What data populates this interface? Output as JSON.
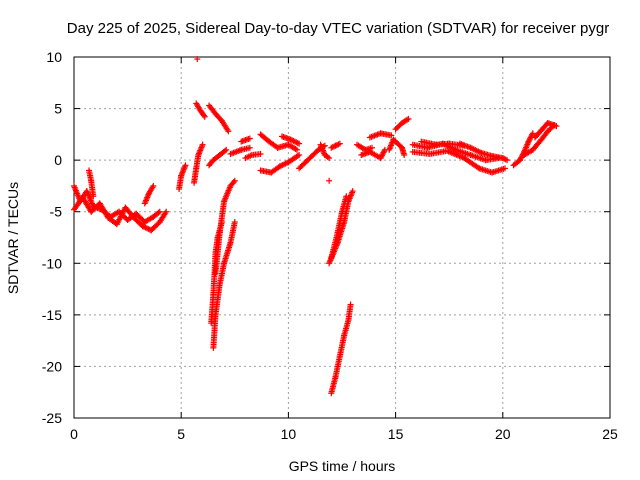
{
  "chart_data": {
    "type": "scatter",
    "title": "Day 225 of 2025, Sidereal Day-to-day VTEC variation (SDTVAR) for receiver pygr",
    "xlabel": "GPS time / hours",
    "ylabel": "SDTVAR / TECUs",
    "xlim": [
      0,
      25
    ],
    "ylim": [
      -25,
      10
    ],
    "xticks": [
      0,
      5,
      10,
      15,
      20,
      25
    ],
    "yticks": [
      -25,
      -20,
      -15,
      -10,
      -5,
      0,
      5,
      10
    ],
    "grid": true,
    "marker": "+",
    "color": "#ff0000",
    "segments": [
      [
        [
          0.0,
          -2.5
        ],
        [
          0.3,
          -4.0
        ],
        [
          0.6,
          -3.0
        ],
        [
          0.9,
          -4.5
        ],
        [
          1.3,
          -4.8
        ],
        [
          1.7,
          -5.5
        ],
        [
          2.1,
          -5.0
        ],
        [
          2.5,
          -5.8
        ],
        [
          2.9,
          -5.2
        ],
        [
          3.3,
          -6.0
        ],
        [
          3.7,
          -5.5
        ],
        [
          4.0,
          -5.0
        ]
      ],
      [
        [
          0.0,
          -4.8
        ],
        [
          0.4,
          -3.6
        ],
        [
          0.8,
          -5.0
        ],
        [
          1.2,
          -4.2
        ],
        [
          1.6,
          -5.6
        ],
        [
          2.0,
          -6.2
        ],
        [
          2.4,
          -4.6
        ],
        [
          2.8,
          -5.6
        ],
        [
          3.2,
          -6.4
        ],
        [
          3.6,
          -6.8
        ],
        [
          4.0,
          -6.0
        ],
        [
          4.3,
          -5.0
        ]
      ],
      [
        [
          0.7,
          -1.0
        ],
        [
          0.8,
          -2.0
        ],
        [
          0.9,
          -3.5
        ]
      ],
      [
        [
          3.3,
          -4.2
        ],
        [
          3.5,
          -3.2
        ],
        [
          3.7,
          -2.5
        ]
      ],
      [
        [
          4.9,
          -2.8
        ],
        [
          5.0,
          -1.5
        ],
        [
          5.2,
          -0.5
        ]
      ],
      [
        [
          5.6,
          -2.2
        ],
        [
          5.7,
          -0.8
        ],
        [
          5.8,
          0.5
        ],
        [
          6.0,
          1.5
        ]
      ],
      [
        [
          5.7,
          5.5
        ],
        [
          5.9,
          4.8
        ],
        [
          6.1,
          4.2
        ]
      ],
      [
        [
          5.75,
          9.8
        ]
      ],
      [
        [
          6.3,
          5.3
        ],
        [
          6.6,
          4.5
        ],
        [
          6.9,
          3.8
        ],
        [
          7.2,
          2.8
        ]
      ],
      [
        [
          6.3,
          -0.5
        ],
        [
          6.5,
          0.0
        ],
        [
          6.8,
          0.5
        ],
        [
          7.1,
          1.0
        ]
      ],
      [
        [
          6.4,
          -15.8
        ],
        [
          6.5,
          -13.0
        ],
        [
          6.6,
          -9.0
        ],
        [
          6.7,
          -7.5
        ],
        [
          6.9,
          -6.0
        ]
      ],
      [
        [
          6.5,
          -18.2
        ],
        [
          6.6,
          -15.0
        ],
        [
          6.8,
          -12.0
        ],
        [
          7.0,
          -10.0
        ],
        [
          7.3,
          -8.0
        ],
        [
          7.5,
          -6.0
        ]
      ],
      [
        [
          6.6,
          -11.0
        ],
        [
          6.8,
          -7.0
        ],
        [
          7.0,
          -4.0
        ],
        [
          7.3,
          -2.5
        ],
        [
          7.5,
          -2.0
        ]
      ],
      [
        [
          7.3,
          0.6
        ],
        [
          7.8,
          1.0
        ],
        [
          8.2,
          1.2
        ]
      ],
      [
        [
          7.8,
          1.8
        ],
        [
          8.2,
          2.1
        ]
      ],
      [
        [
          8.0,
          0.2
        ],
        [
          8.3,
          0.5
        ],
        [
          8.7,
          0.6
        ]
      ],
      [
        [
          8.7,
          2.5
        ],
        [
          9.1,
          1.8
        ],
        [
          9.5,
          1.2
        ],
        [
          10.0,
          1.5
        ],
        [
          10.4,
          1.0
        ]
      ],
      [
        [
          8.7,
          -1.0
        ],
        [
          9.2,
          -1.2
        ],
        [
          9.6,
          -0.6
        ],
        [
          10.0,
          -0.2
        ],
        [
          10.5,
          0.5
        ]
      ],
      [
        [
          9.7,
          2.3
        ],
        [
          10.1,
          2.0
        ],
        [
          10.5,
          1.6
        ]
      ],
      [
        [
          10.5,
          -0.8
        ],
        [
          10.8,
          -0.2
        ],
        [
          11.1,
          0.4
        ],
        [
          11.4,
          1.0
        ],
        [
          11.7,
          1.4
        ]
      ],
      [
        [
          11.5,
          1.5
        ],
        [
          11.7,
          0.5
        ],
        [
          11.9,
          0.2
        ]
      ],
      [
        [
          11.9,
          -2.0
        ]
      ],
      [
        [
          12.0,
          1.2
        ],
        [
          12.2,
          1.4
        ],
        [
          12.4,
          1.6
        ]
      ],
      [
        [
          12.0,
          -22.6
        ],
        [
          12.2,
          -21.0
        ],
        [
          12.4,
          -19.0
        ],
        [
          12.6,
          -17.0
        ],
        [
          12.8,
          -15.5
        ],
        [
          12.9,
          -14.0
        ]
      ],
      [
        [
          11.9,
          -10.0
        ],
        [
          12.1,
          -9.0
        ],
        [
          12.3,
          -8.0
        ],
        [
          12.6,
          -6.0
        ],
        [
          12.8,
          -4.0
        ],
        [
          13.0,
          -3.0
        ]
      ],
      [
        [
          12.0,
          -9.5
        ],
        [
          12.3,
          -7.0
        ],
        [
          12.5,
          -5.0
        ],
        [
          12.7,
          -3.5
        ]
      ],
      [
        [
          13.2,
          1.5
        ],
        [
          13.6,
          1.0
        ],
        [
          13.9,
          1.2
        ]
      ],
      [
        [
          13.4,
          0.5
        ],
        [
          13.8,
          0.8
        ],
        [
          14.3,
          0.2
        ],
        [
          14.5,
          1.0
        ]
      ],
      [
        [
          13.8,
          2.2
        ],
        [
          14.3,
          2.6
        ],
        [
          14.8,
          2.4
        ]
      ],
      [
        [
          14.7,
          1.0
        ],
        [
          14.9,
          2.0
        ],
        [
          15.3,
          1.2
        ],
        [
          15.4,
          0.5
        ]
      ],
      [
        [
          15.0,
          3.0
        ],
        [
          15.3,
          3.6
        ],
        [
          15.6,
          4.0
        ]
      ],
      [
        [
          15.8,
          1.5
        ],
        [
          16.5,
          1.2
        ],
        [
          17.2,
          1.6
        ],
        [
          17.8,
          1.0
        ],
        [
          18.5,
          0.5
        ],
        [
          19.2,
          0.0
        ],
        [
          19.8,
          0.2
        ]
      ],
      [
        [
          15.8,
          0.8
        ],
        [
          16.6,
          0.6
        ],
        [
          17.4,
          0.9
        ],
        [
          18.2,
          0.2
        ],
        [
          18.9,
          -0.8
        ],
        [
          19.5,
          -1.2
        ],
        [
          20.1,
          -0.8
        ]
      ],
      [
        [
          16.2,
          1.8
        ],
        [
          16.9,
          1.5
        ],
        [
          17.5,
          1.6
        ],
        [
          18.2,
          1.4
        ]
      ],
      [
        [
          18.0,
          1.6
        ],
        [
          18.5,
          1.2
        ],
        [
          19.0,
          0.7
        ],
        [
          19.5,
          0.4
        ],
        [
          20.0,
          0.2
        ],
        [
          20.2,
          0.0
        ]
      ],
      [
        [
          20.5,
          -0.5
        ],
        [
          20.8,
          0.0
        ],
        [
          21.0,
          0.8
        ],
        [
          21.2,
          1.8
        ],
        [
          21.4,
          2.6
        ]
      ],
      [
        [
          21.0,
          0.5
        ],
        [
          21.4,
          1.0
        ],
        [
          21.8,
          2.0
        ],
        [
          22.1,
          2.8
        ],
        [
          22.4,
          3.4
        ]
      ],
      [
        [
          21.5,
          2.2
        ],
        [
          21.8,
          2.9
        ],
        [
          22.1,
          3.6
        ],
        [
          22.5,
          3.3
        ]
      ]
    ]
  }
}
